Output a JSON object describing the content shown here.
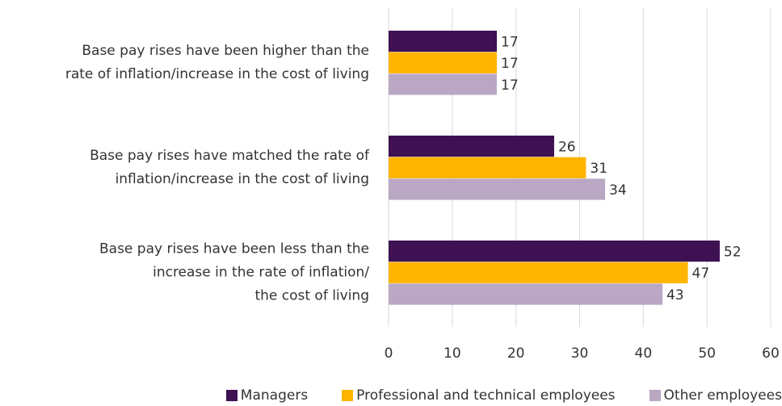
{
  "chart_data": {
    "type": "bar",
    "orientation": "horizontal",
    "categories": [
      "Base pay rises have been higher than the\nrate of inflation/increase in the cost of living",
      "Base pay rises have matched the rate of\ninflation/increase in the cost of living",
      "Base pay rises have been less than the\nincrease in the rate of inflation/\nthe cost of living"
    ],
    "series": [
      {
        "name": "Managers",
        "color": "#3d1152",
        "values": [
          17,
          26,
          52
        ]
      },
      {
        "name": "Professional and technical employees",
        "color": "#ffb400",
        "values": [
          17,
          31,
          47
        ]
      },
      {
        "name": "Other employees",
        "color": "#b9a7c3",
        "values": [
          17,
          34,
          43
        ]
      }
    ],
    "xlim": [
      0,
      60
    ],
    "xticks": [
      0,
      10,
      20,
      30,
      40,
      50,
      60
    ],
    "grid": true,
    "legend": "bottom"
  }
}
